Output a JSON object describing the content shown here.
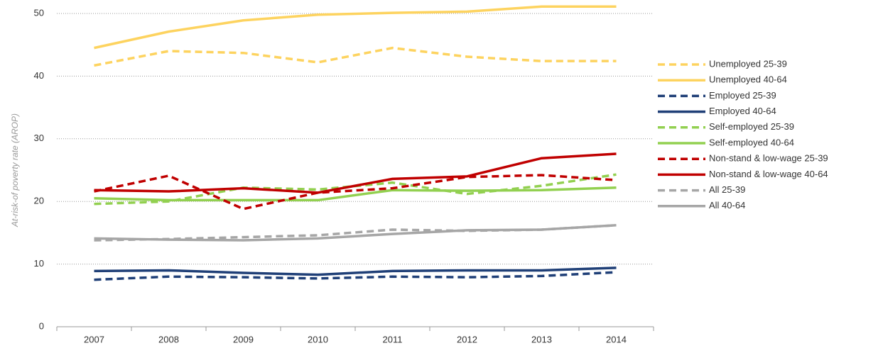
{
  "chart_data": {
    "type": "line",
    "y_label": "At-risk-of poverty rate (AROP)",
    "categories": [
      "2007",
      "2008",
      "2009",
      "2010",
      "2011",
      "2012",
      "2013",
      "2014"
    ],
    "ylim": [
      0,
      50
    ],
    "yticks": [
      0,
      10,
      20,
      30,
      40,
      50
    ],
    "grid": true,
    "legend": "right",
    "series": [
      {
        "name": "Unemployed 25-39",
        "color": "#fdd35f",
        "dashed": true,
        "values": [
          41.7,
          44.0,
          43.7,
          42.2,
          44.5,
          43.1,
          42.4,
          42.4
        ]
      },
      {
        "name": "Unemployed 40-64",
        "color": "#fdd35f",
        "dashed": false,
        "values": [
          44.5,
          47.1,
          48.9,
          49.8,
          50.1,
          50.3,
          51.1,
          51.1
        ]
      },
      {
        "name": "Employed 25-39",
        "color": "#1f3f77",
        "dashed": true,
        "values": [
          7.5,
          8.0,
          7.9,
          7.7,
          8.0,
          7.9,
          8.1,
          8.7
        ]
      },
      {
        "name": "Employed 40-64",
        "color": "#1f3f77",
        "dashed": false,
        "values": [
          8.9,
          9.0,
          8.6,
          8.3,
          8.9,
          9.0,
          9.0,
          9.4
        ]
      },
      {
        "name": "Self-employed 25-39",
        "color": "#92d050",
        "dashed": true,
        "values": [
          19.6,
          20.0,
          22.2,
          21.9,
          23.0,
          21.2,
          22.5,
          24.3
        ]
      },
      {
        "name": "Self-employed 40-64",
        "color": "#92d050",
        "dashed": false,
        "values": [
          20.5,
          20.2,
          20.2,
          20.2,
          21.8,
          21.7,
          21.8,
          22.2
        ]
      },
      {
        "name": "Non-stand & low-wage 25-39",
        "color": "#c00000",
        "dashed": true,
        "values": [
          21.6,
          24.1,
          18.8,
          21.4,
          22.1,
          23.9,
          24.2,
          23.4
        ]
      },
      {
        "name": "Non-stand & low-wage 40-64",
        "color": "#c00000",
        "dashed": false,
        "values": [
          21.8,
          21.6,
          22.1,
          21.4,
          23.6,
          24.0,
          26.9,
          27.6
        ]
      },
      {
        "name": "All 25-39",
        "color": "#a6a6a6",
        "dashed": true,
        "values": [
          13.8,
          14.0,
          14.3,
          14.6,
          15.5,
          15.3,
          15.5,
          16.2
        ]
      },
      {
        "name": "All 40-64",
        "color": "#a6a6a6",
        "dashed": false,
        "values": [
          14.1,
          13.9,
          13.8,
          14.1,
          14.8,
          15.4,
          15.5,
          16.2
        ]
      }
    ]
  }
}
